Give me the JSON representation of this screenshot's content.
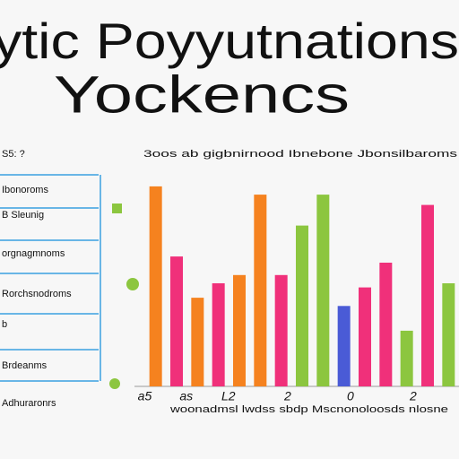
{
  "chart_data": {
    "type": "bar",
    "title": "ytic Poyyutnations",
    "subtitle": "Yockencs",
    "header": "3oos ab gigbnirnood Ibnebone Jbonsilbaroms",
    "footer": "woonadmsl lwdss sbdp Mscnonoloosds nlosne",
    "legend_items": [
      "S5: ?",
      "Ibonoroms",
      "B Sleunig",
      "orgnagmnoms",
      "Rorchsnodroms",
      "b",
      "Brdeanms",
      "Adhuraronrs"
    ],
    "categories": [
      "a5",
      null,
      "as",
      null,
      "L2",
      null,
      null,
      "2",
      null,
      null,
      "0",
      null,
      null,
      "2",
      null
    ],
    "values": [
      97,
      63,
      43,
      50,
      54,
      93,
      54,
      78,
      93,
      39,
      48,
      60,
      27,
      88,
      50
    ],
    "colors": [
      "#f5821f",
      "#f0307a",
      "#f5821f",
      "#f0307a",
      "#f5821f",
      "#f5821f",
      "#f0307a",
      "#8cc63f",
      "#8cc63f",
      "#4a5bd6",
      "#f0307a",
      "#f0307a",
      "#8cc63f",
      "#f0307a",
      "#8cc63f"
    ],
    "ylim": [
      0,
      100
    ]
  }
}
